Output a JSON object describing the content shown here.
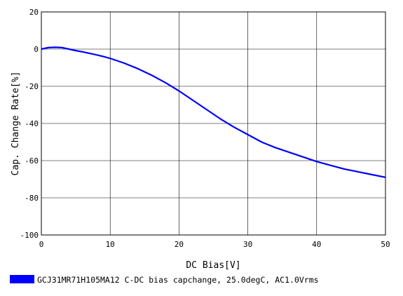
{
  "chart_data": {
    "type": "line",
    "title": "",
    "xlabel": "DC Bias[V]",
    "ylabel": "Cap. Change Rate[%]",
    "xlim": [
      0,
      50
    ],
    "ylim": [
      -100,
      20
    ],
    "x_ticks": [
      "0",
      "10",
      "20",
      "30",
      "40",
      "50"
    ],
    "y_ticks": [
      "20",
      "0",
      "-20",
      "-40",
      "-60",
      "-80",
      "-100"
    ],
    "grid": true,
    "legend_position": "bottom-left",
    "series": [
      {
        "name": "GCJ31MR71H105MA12 C-DC bias capchange, 25.0degC, AC1.0Vrms",
        "color": "#0000ff",
        "x": [
          0,
          1,
          2,
          3,
          4,
          5,
          6,
          7,
          8,
          9,
          10,
          12,
          14,
          16,
          18,
          20,
          22,
          24,
          26,
          28,
          30,
          32,
          34,
          36,
          38,
          40,
          42,
          44,
          46,
          48,
          50
        ],
        "y": [
          0,
          0.8,
          1.0,
          0.8,
          0,
          -0.8,
          -1.5,
          -2.3,
          -3.1,
          -4.0,
          -5.0,
          -7.5,
          -10.5,
          -14.0,
          -18.0,
          -22.5,
          -27.5,
          -32.5,
          -37.5,
          -42.0,
          -46.0,
          -50.0,
          -53.0,
          -55.5,
          -58.0,
          -60.5,
          -62.5,
          -64.5,
          -66.0,
          -67.5,
          -69.0
        ]
      }
    ]
  }
}
